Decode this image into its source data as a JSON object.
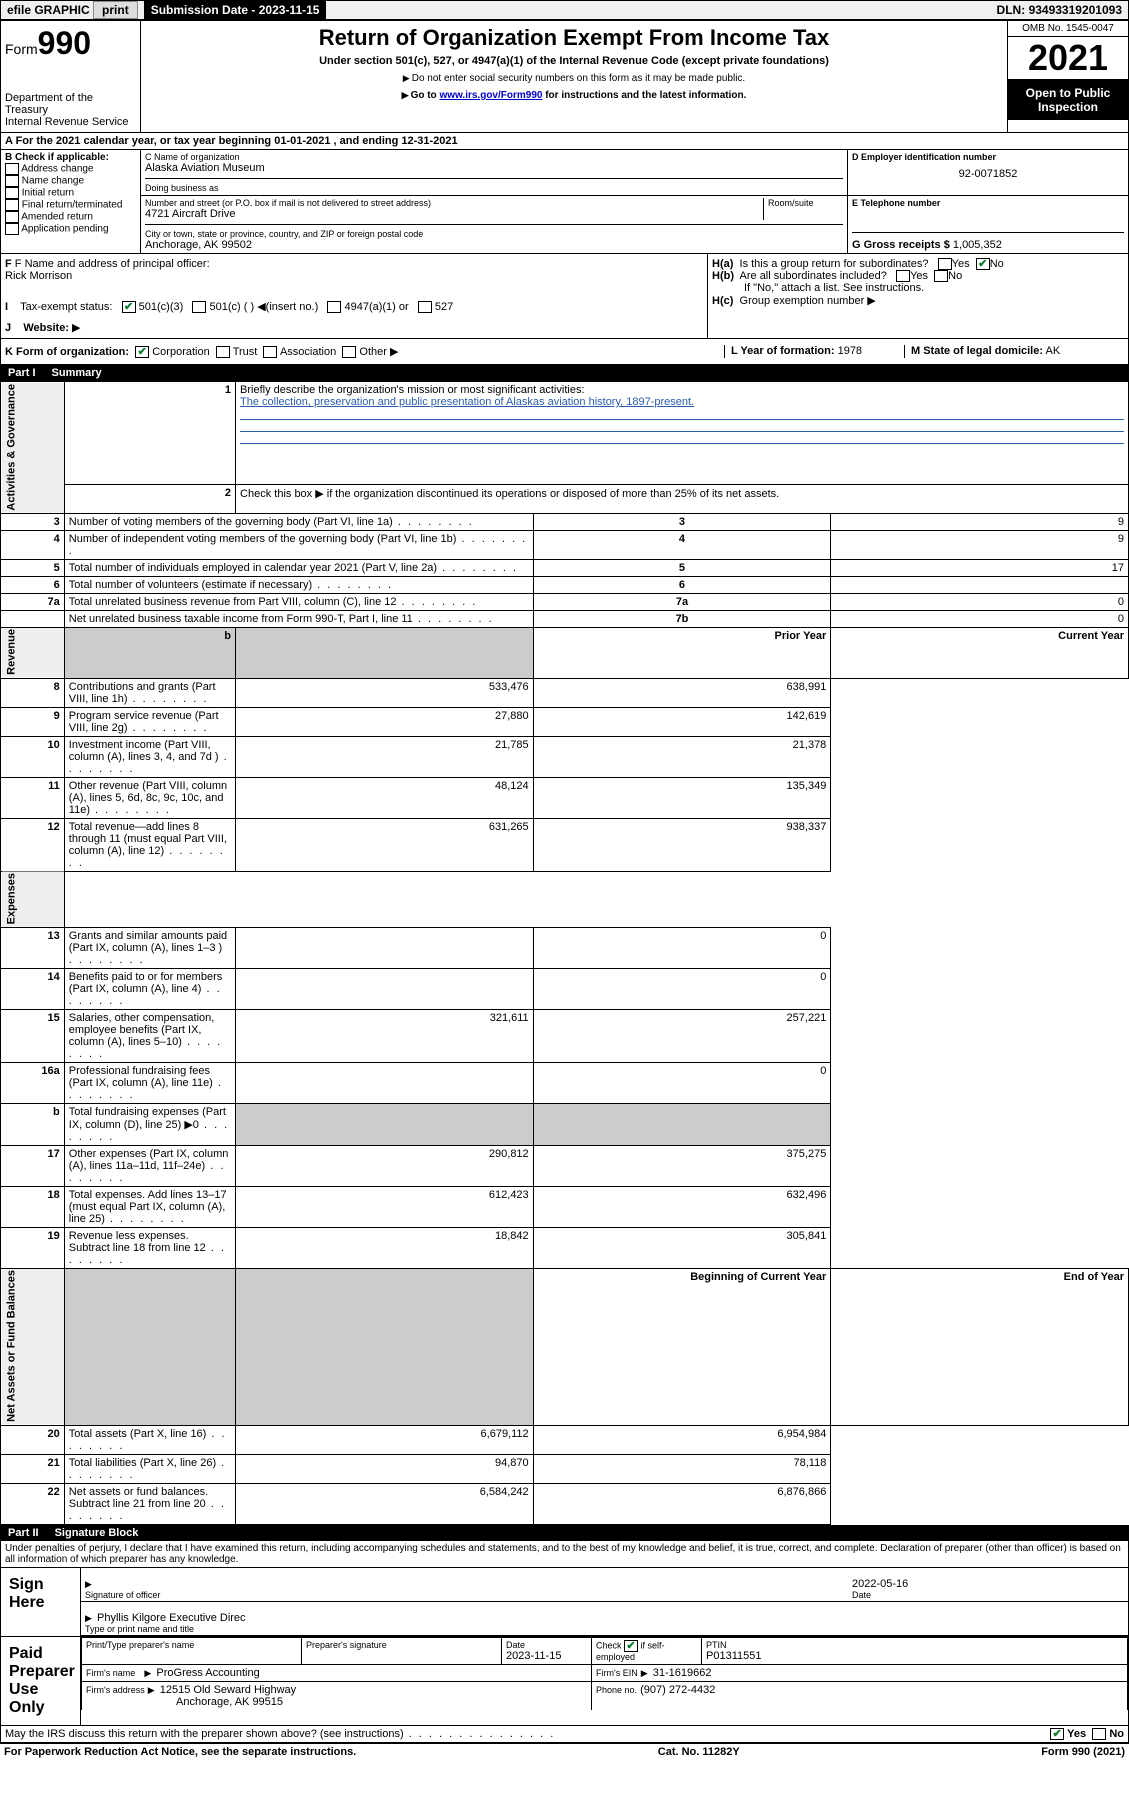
{
  "topbar": {
    "efile": "efile GRAPHIC",
    "print": "print",
    "sub_label": "Submission Date -",
    "sub_date": "2023-11-15",
    "dln_label": "DLN:",
    "dln": "93493319201093"
  },
  "header": {
    "form_word": "Form",
    "form_num": "990",
    "dept": "Department of the Treasury",
    "irs": "Internal Revenue Service",
    "title": "Return of Organization Exempt From Income Tax",
    "sub1": "Under section 501(c), 527, or 4947(a)(1) of the Internal Revenue Code (except private foundations)",
    "sub2": "Do not enter social security numbers on this form as it may be made public.",
    "sub3_pre": "Go to ",
    "sub3_link": "www.irs.gov/Form990",
    "sub3_post": " for instructions and the latest information.",
    "omb": "OMB No. 1545-0047",
    "year": "2021",
    "open": "Open to Public Inspection"
  },
  "rowA": {
    "text_pre": "A For the 2021 calendar year, or tax year beginning ",
    "begin": "01-01-2021",
    "mid": " , and ending ",
    "end": "12-31-2021"
  },
  "colB": {
    "hdr": "B Check if applicable:",
    "items": [
      "Address change",
      "Name change",
      "Initial return",
      "Final return/terminated",
      "Amended return",
      "Application pending"
    ]
  },
  "colC": {
    "name_label": "C Name of organization",
    "name": "Alaska Aviation Museum",
    "dba_label": "Doing business as",
    "dba": "",
    "street_label": "Number and street (or P.O. box if mail is not delivered to street address)",
    "room_label": "Room/suite",
    "street": "4721 Aircraft Drive",
    "city_label": "City or town, state or province, country, and ZIP or foreign postal code",
    "city": "Anchorage, AK  99502"
  },
  "colD": {
    "label": "D Employer identification number",
    "val": "92-0071852"
  },
  "colE": {
    "label": "E Telephone number",
    "val": ""
  },
  "colG": {
    "label": "G Gross receipts $",
    "val": "1,005,352"
  },
  "fi": {
    "f_label": "F Name and address of principal officer:",
    "f_name": "Rick Morrison",
    "i_label": "Tax-exempt status:",
    "i_501c3": "501(c)(3)",
    "i_501c": "501(c) ( )",
    "i_insert": "(insert no.)",
    "i_4947": "4947(a)(1) or",
    "i_527": "527",
    "j_label": "Website:",
    "ha": "Is this a group return for subordinates?",
    "hb": "Are all subordinates included?",
    "hb_note": "If \"No,\" attach a list. See instructions.",
    "hc": "Group exemption number",
    "yes": "Yes",
    "no": "No"
  },
  "rowK": {
    "k": "K Form of organization:",
    "corp": "Corporation",
    "trust": "Trust",
    "assoc": "Association",
    "other": "Other",
    "l": "L Year of formation:",
    "l_val": "1978",
    "m": "M State of legal domicile:",
    "m_val": "AK"
  },
  "part1": {
    "part": "Part I",
    "title": "Summary",
    "q1": "Briefly describe the organization's mission or most significant activities:",
    "mission": "The collection, preservation and public presentation of Alaskas aviation history, 1897-present.",
    "q2": "Check this box ▶       if the organization discontinued its operations or disposed of more than 25% of its net assets.",
    "rows_gov": [
      {
        "n": "3",
        "t": "Number of voting members of the governing body (Part VI, line 1a)",
        "box": "3",
        "v": "9"
      },
      {
        "n": "4",
        "t": "Number of independent voting members of the governing body (Part VI, line 1b)",
        "box": "4",
        "v": "9"
      },
      {
        "n": "5",
        "t": "Total number of individuals employed in calendar year 2021 (Part V, line 2a)",
        "box": "5",
        "v": "17"
      },
      {
        "n": "6",
        "t": "Total number of volunteers (estimate if necessary)",
        "box": "6",
        "v": ""
      },
      {
        "n": "7a",
        "t": "Total unrelated business revenue from Part VIII, column (C), line 12",
        "box": "7a",
        "v": "0"
      },
      {
        "n": "",
        "t": "Net unrelated business taxable income from Form 990-T, Part I, line 11",
        "box": "7b",
        "v": "0"
      }
    ],
    "col_prior": "Prior Year",
    "col_curr": "Current Year",
    "rows_rev": [
      {
        "n": "8",
        "t": "Contributions and grants (Part VIII, line 1h)",
        "p": "533,476",
        "c": "638,991"
      },
      {
        "n": "9",
        "t": "Program service revenue (Part VIII, line 2g)",
        "p": "27,880",
        "c": "142,619"
      },
      {
        "n": "10",
        "t": "Investment income (Part VIII, column (A), lines 3, 4, and 7d )",
        "p": "21,785",
        "c": "21,378"
      },
      {
        "n": "11",
        "t": "Other revenue (Part VIII, column (A), lines 5, 6d, 8c, 9c, 10c, and 11e)",
        "p": "48,124",
        "c": "135,349"
      },
      {
        "n": "12",
        "t": "Total revenue—add lines 8 through 11 (must equal Part VIII, column (A), line 12)",
        "p": "631,265",
        "c": "938,337"
      }
    ],
    "rows_exp": [
      {
        "n": "13",
        "t": "Grants and similar amounts paid (Part IX, column (A), lines 1–3 )",
        "p": "",
        "c": "0"
      },
      {
        "n": "14",
        "t": "Benefits paid to or for members (Part IX, column (A), line 4)",
        "p": "",
        "c": "0"
      },
      {
        "n": "15",
        "t": "Salaries, other compensation, employee benefits (Part IX, column (A), lines 5–10)",
        "p": "321,611",
        "c": "257,221"
      },
      {
        "n": "16a",
        "t": "Professional fundraising fees (Part IX, column (A), line 11e)",
        "p": "",
        "c": "0"
      },
      {
        "n": "b",
        "t": "Total fundraising expenses (Part IX, column (D), line 25) ▶0",
        "p": "shade",
        "c": "shade"
      },
      {
        "n": "17",
        "t": "Other expenses (Part IX, column (A), lines 11a–11d, 11f–24e)",
        "p": "290,812",
        "c": "375,275"
      },
      {
        "n": "18",
        "t": "Total expenses. Add lines 13–17 (must equal Part IX, column (A), line 25)",
        "p": "612,423",
        "c": "632,496"
      },
      {
        "n": "19",
        "t": "Revenue less expenses. Subtract line 18 from line 12",
        "p": "18,842",
        "c": "305,841"
      }
    ],
    "col_begin": "Beginning of Current Year",
    "col_end": "End of Year",
    "rows_net": [
      {
        "n": "20",
        "t": "Total assets (Part X, line 16)",
        "p": "6,679,112",
        "c": "6,954,984"
      },
      {
        "n": "21",
        "t": "Total liabilities (Part X, line 26)",
        "p": "94,870",
        "c": "78,118"
      },
      {
        "n": "22",
        "t": "Net assets or fund balances. Subtract line 21 from line 20",
        "p": "6,584,242",
        "c": "6,876,866"
      }
    ],
    "vtabs": {
      "gov": "Activities & Governance",
      "rev": "Revenue",
      "exp": "Expenses",
      "net": "Net Assets or Fund Balances"
    }
  },
  "part2": {
    "part": "Part II",
    "title": "Signature Block",
    "decl": "Under penalties of perjury, I declare that I have examined this return, including accompanying schedules and statements, and to the best of my knowledge and belief, it is true, correct, and complete. Declaration of preparer (other than officer) is based on all information of which preparer has any knowledge.",
    "sign_here": "Sign Here",
    "sig_officer": "Signature of officer",
    "sig_date": "Date",
    "sig_date_val": "2022-05-16",
    "sig_name": "Phyllis Kilgore  Executive Direc",
    "sig_name_label": "Type or print name and title",
    "paid": "Paid Preparer Use Only",
    "prep_name_label": "Print/Type preparer's name",
    "prep_sig_label": "Preparer's signature",
    "prep_date_label": "Date",
    "prep_date": "2023-11-15",
    "prep_check": "Check         if self-employed",
    "prep_ptin_label": "PTIN",
    "prep_ptin": "P01311551",
    "firm_name_label": "Firm's name",
    "firm_name": "ProGress Accounting",
    "firm_ein_label": "Firm's EIN",
    "firm_ein": "31-1619662",
    "firm_addr_label": "Firm's address",
    "firm_addr1": "12515 Old Seward Highway",
    "firm_addr2": "Anchorage, AK  99515",
    "firm_phone_label": "Phone no.",
    "firm_phone": "(907) 272-4432",
    "may": "May the IRS discuss this return with the preparer shown above? (see instructions)"
  },
  "footer": {
    "left": "For Paperwork Reduction Act Notice, see the separate instructions.",
    "mid": "Cat. No. 11282Y",
    "right": "Form 990 (2021)"
  },
  "colors": {
    "link": "#0000cc",
    "check": "#0a7d2c",
    "missionline": "#2a5db0"
  }
}
